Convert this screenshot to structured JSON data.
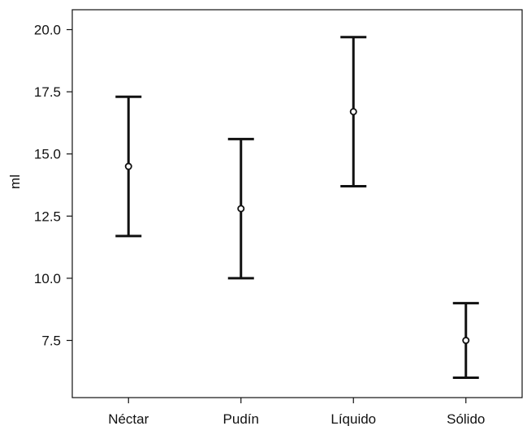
{
  "chart_data": {
    "type": "errorbar",
    "title": "",
    "xlabel": "",
    "ylabel": "ml",
    "ylim": [
      5.2,
      20.8
    ],
    "yticks": [
      "7.5",
      "10.0",
      "12.5",
      "15.0",
      "17.5",
      "20.0"
    ],
    "categories": [
      "Néctar",
      "Pudín",
      "Líquido",
      "Sólido"
    ],
    "means": [
      14.5,
      12.8,
      16.7,
      7.5
    ],
    "lower": [
      11.7,
      10.0,
      13.7,
      6.0
    ],
    "upper": [
      17.3,
      15.6,
      19.7,
      9.0
    ],
    "grid": false,
    "legend": "none",
    "color": "#111111"
  }
}
